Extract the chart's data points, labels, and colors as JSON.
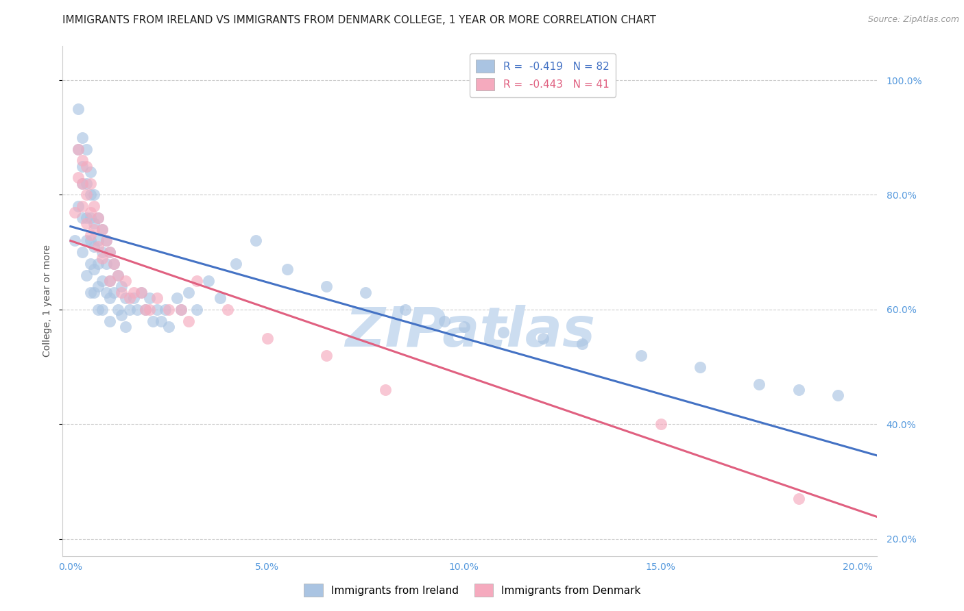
{
  "title": "IMMIGRANTS FROM IRELAND VS IMMIGRANTS FROM DENMARK COLLEGE, 1 YEAR OR MORE CORRELATION CHART",
  "source": "Source: ZipAtlas.com",
  "ylabel": "College, 1 year or more",
  "x_tick_labels": [
    "0.0%",
    "5.0%",
    "10.0%",
    "15.0%",
    "20.0%"
  ],
  "x_tick_values": [
    0.0,
    0.05,
    0.1,
    0.15,
    0.2
  ],
  "y_tick_labels": [
    "20.0%",
    "40.0%",
    "60.0%",
    "80.0%",
    "100.0%"
  ],
  "y_tick_values": [
    0.2,
    0.4,
    0.6,
    0.8,
    1.0
  ],
  "xlim": [
    -0.002,
    0.205
  ],
  "ylim": [
    0.17,
    1.06
  ],
  "ireland_R": -0.419,
  "ireland_N": 82,
  "denmark_R": -0.443,
  "denmark_N": 41,
  "ireland_color": "#aac4e2",
  "denmark_color": "#f5aabe",
  "ireland_line_color": "#4472c4",
  "denmark_line_color": "#e06080",
  "background_color": "#ffffff",
  "grid_color": "#cccccc",
  "axis_tick_color": "#5599dd",
  "title_fontsize": 11,
  "axis_label_fontsize": 10,
  "tick_fontsize": 10,
  "legend_fontsize": 11,
  "watermark_text": "ZIPatlas",
  "watermark_color": "#ccddf0",
  "ireland_x": [
    0.001,
    0.002,
    0.002,
    0.002,
    0.003,
    0.003,
    0.003,
    0.003,
    0.003,
    0.004,
    0.004,
    0.004,
    0.004,
    0.004,
    0.005,
    0.005,
    0.005,
    0.005,
    0.005,
    0.005,
    0.006,
    0.006,
    0.006,
    0.006,
    0.006,
    0.007,
    0.007,
    0.007,
    0.007,
    0.007,
    0.008,
    0.008,
    0.008,
    0.008,
    0.009,
    0.009,
    0.009,
    0.01,
    0.01,
    0.01,
    0.01,
    0.011,
    0.011,
    0.012,
    0.012,
    0.013,
    0.013,
    0.014,
    0.014,
    0.015,
    0.016,
    0.017,
    0.018,
    0.019,
    0.02,
    0.021,
    0.022,
    0.023,
    0.024,
    0.025,
    0.027,
    0.028,
    0.03,
    0.032,
    0.035,
    0.038,
    0.042,
    0.047,
    0.055,
    0.065,
    0.075,
    0.085,
    0.095,
    0.1,
    0.11,
    0.12,
    0.13,
    0.145,
    0.16,
    0.175,
    0.185,
    0.195
  ],
  "ireland_y": [
    0.72,
    0.95,
    0.88,
    0.78,
    0.9,
    0.85,
    0.82,
    0.76,
    0.7,
    0.88,
    0.82,
    0.76,
    0.72,
    0.66,
    0.84,
    0.8,
    0.76,
    0.72,
    0.68,
    0.63,
    0.8,
    0.75,
    0.71,
    0.67,
    0.63,
    0.76,
    0.72,
    0.68,
    0.64,
    0.6,
    0.74,
    0.7,
    0.65,
    0.6,
    0.72,
    0.68,
    0.63,
    0.7,
    0.65,
    0.62,
    0.58,
    0.68,
    0.63,
    0.66,
    0.6,
    0.64,
    0.59,
    0.62,
    0.57,
    0.6,
    0.62,
    0.6,
    0.63,
    0.6,
    0.62,
    0.58,
    0.6,
    0.58,
    0.6,
    0.57,
    0.62,
    0.6,
    0.63,
    0.6,
    0.65,
    0.62,
    0.68,
    0.72,
    0.67,
    0.64,
    0.63,
    0.6,
    0.58,
    0.57,
    0.56,
    0.55,
    0.54,
    0.52,
    0.5,
    0.47,
    0.46,
    0.45
  ],
  "denmark_x": [
    0.001,
    0.002,
    0.002,
    0.003,
    0.003,
    0.003,
    0.004,
    0.004,
    0.004,
    0.005,
    0.005,
    0.005,
    0.006,
    0.006,
    0.007,
    0.007,
    0.008,
    0.008,
    0.009,
    0.01,
    0.01,
    0.011,
    0.012,
    0.013,
    0.014,
    0.015,
    0.016,
    0.018,
    0.019,
    0.02,
    0.022,
    0.025,
    0.028,
    0.03,
    0.032,
    0.04,
    0.05,
    0.065,
    0.08,
    0.15,
    0.185
  ],
  "denmark_y": [
    0.77,
    0.88,
    0.83,
    0.86,
    0.82,
    0.78,
    0.85,
    0.8,
    0.75,
    0.82,
    0.77,
    0.73,
    0.78,
    0.74,
    0.76,
    0.71,
    0.74,
    0.69,
    0.72,
    0.7,
    0.65,
    0.68,
    0.66,
    0.63,
    0.65,
    0.62,
    0.63,
    0.63,
    0.6,
    0.6,
    0.62,
    0.6,
    0.6,
    0.58,
    0.65,
    0.6,
    0.55,
    0.52,
    0.46,
    0.4,
    0.27
  ],
  "ireland_line_intercept": 0.745,
  "ireland_line_slope": -1.95,
  "denmark_line_intercept": 0.72,
  "denmark_line_slope": -2.35
}
